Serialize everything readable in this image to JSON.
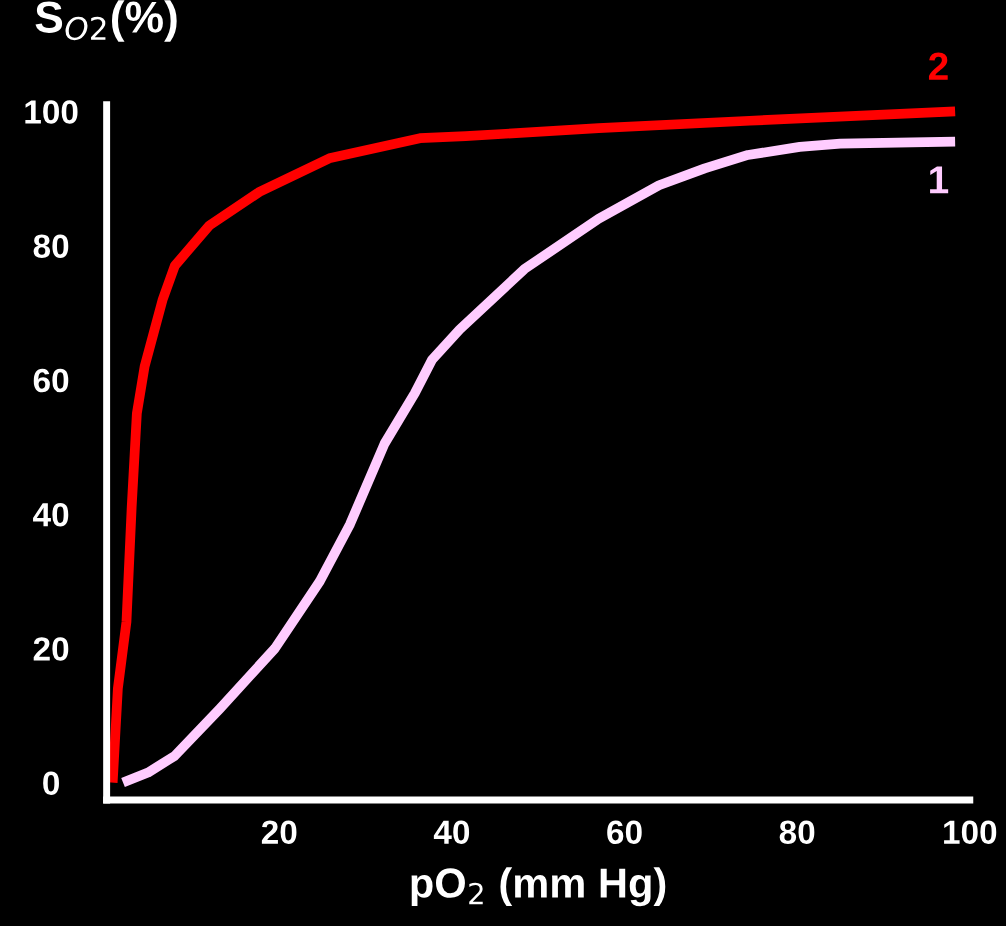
{
  "chart_data": {
    "type": "line",
    "ylabel": "S$_{O2}$(%)",
    "xlabel": "pO$_{2}$ (mm Hg)",
    "xlim": [
      0,
      100
    ],
    "ylim": [
      -2.6,
      101
    ],
    "xticks": [
      20,
      40,
      60,
      80,
      100
    ],
    "yticks": [
      0,
      20,
      40,
      60,
      80,
      100
    ],
    "grid": false,
    "legend": false,
    "marker": "none",
    "line_style": "solid",
    "series": [
      {
        "name": "2",
        "color": "#ff0000",
        "x": [
          0.7,
          1.3,
          2.3,
          2.9,
          3.5,
          4.4,
          6.5,
          7.9,
          11.9,
          17.7,
          25.8,
          36.3,
          41.6,
          57,
          74.5,
          98.3
        ],
        "values": [
          0,
          14,
          24,
          41,
          55,
          62,
          72,
          77,
          83,
          88,
          93,
          96,
          96.3,
          97.5,
          98.6,
          100
        ]
      },
      {
        "name": "1",
        "color": "#ffccff",
        "x": [
          1.9,
          4.8,
          7.9,
          13.1,
          19.5,
          24.7,
          28.2,
          32.2,
          35.7,
          37.7,
          40.9,
          48.4,
          57,
          64,
          69.3,
          74.3,
          80.3,
          85,
          98.3
        ],
        "values": [
          0,
          1.5,
          4,
          11,
          20,
          30,
          38.5,
          50.5,
          58,
          63,
          67.5,
          76.5,
          84,
          89,
          91.5,
          93.5,
          94.7,
          95.2,
          95.5
        ]
      }
    ]
  }
}
